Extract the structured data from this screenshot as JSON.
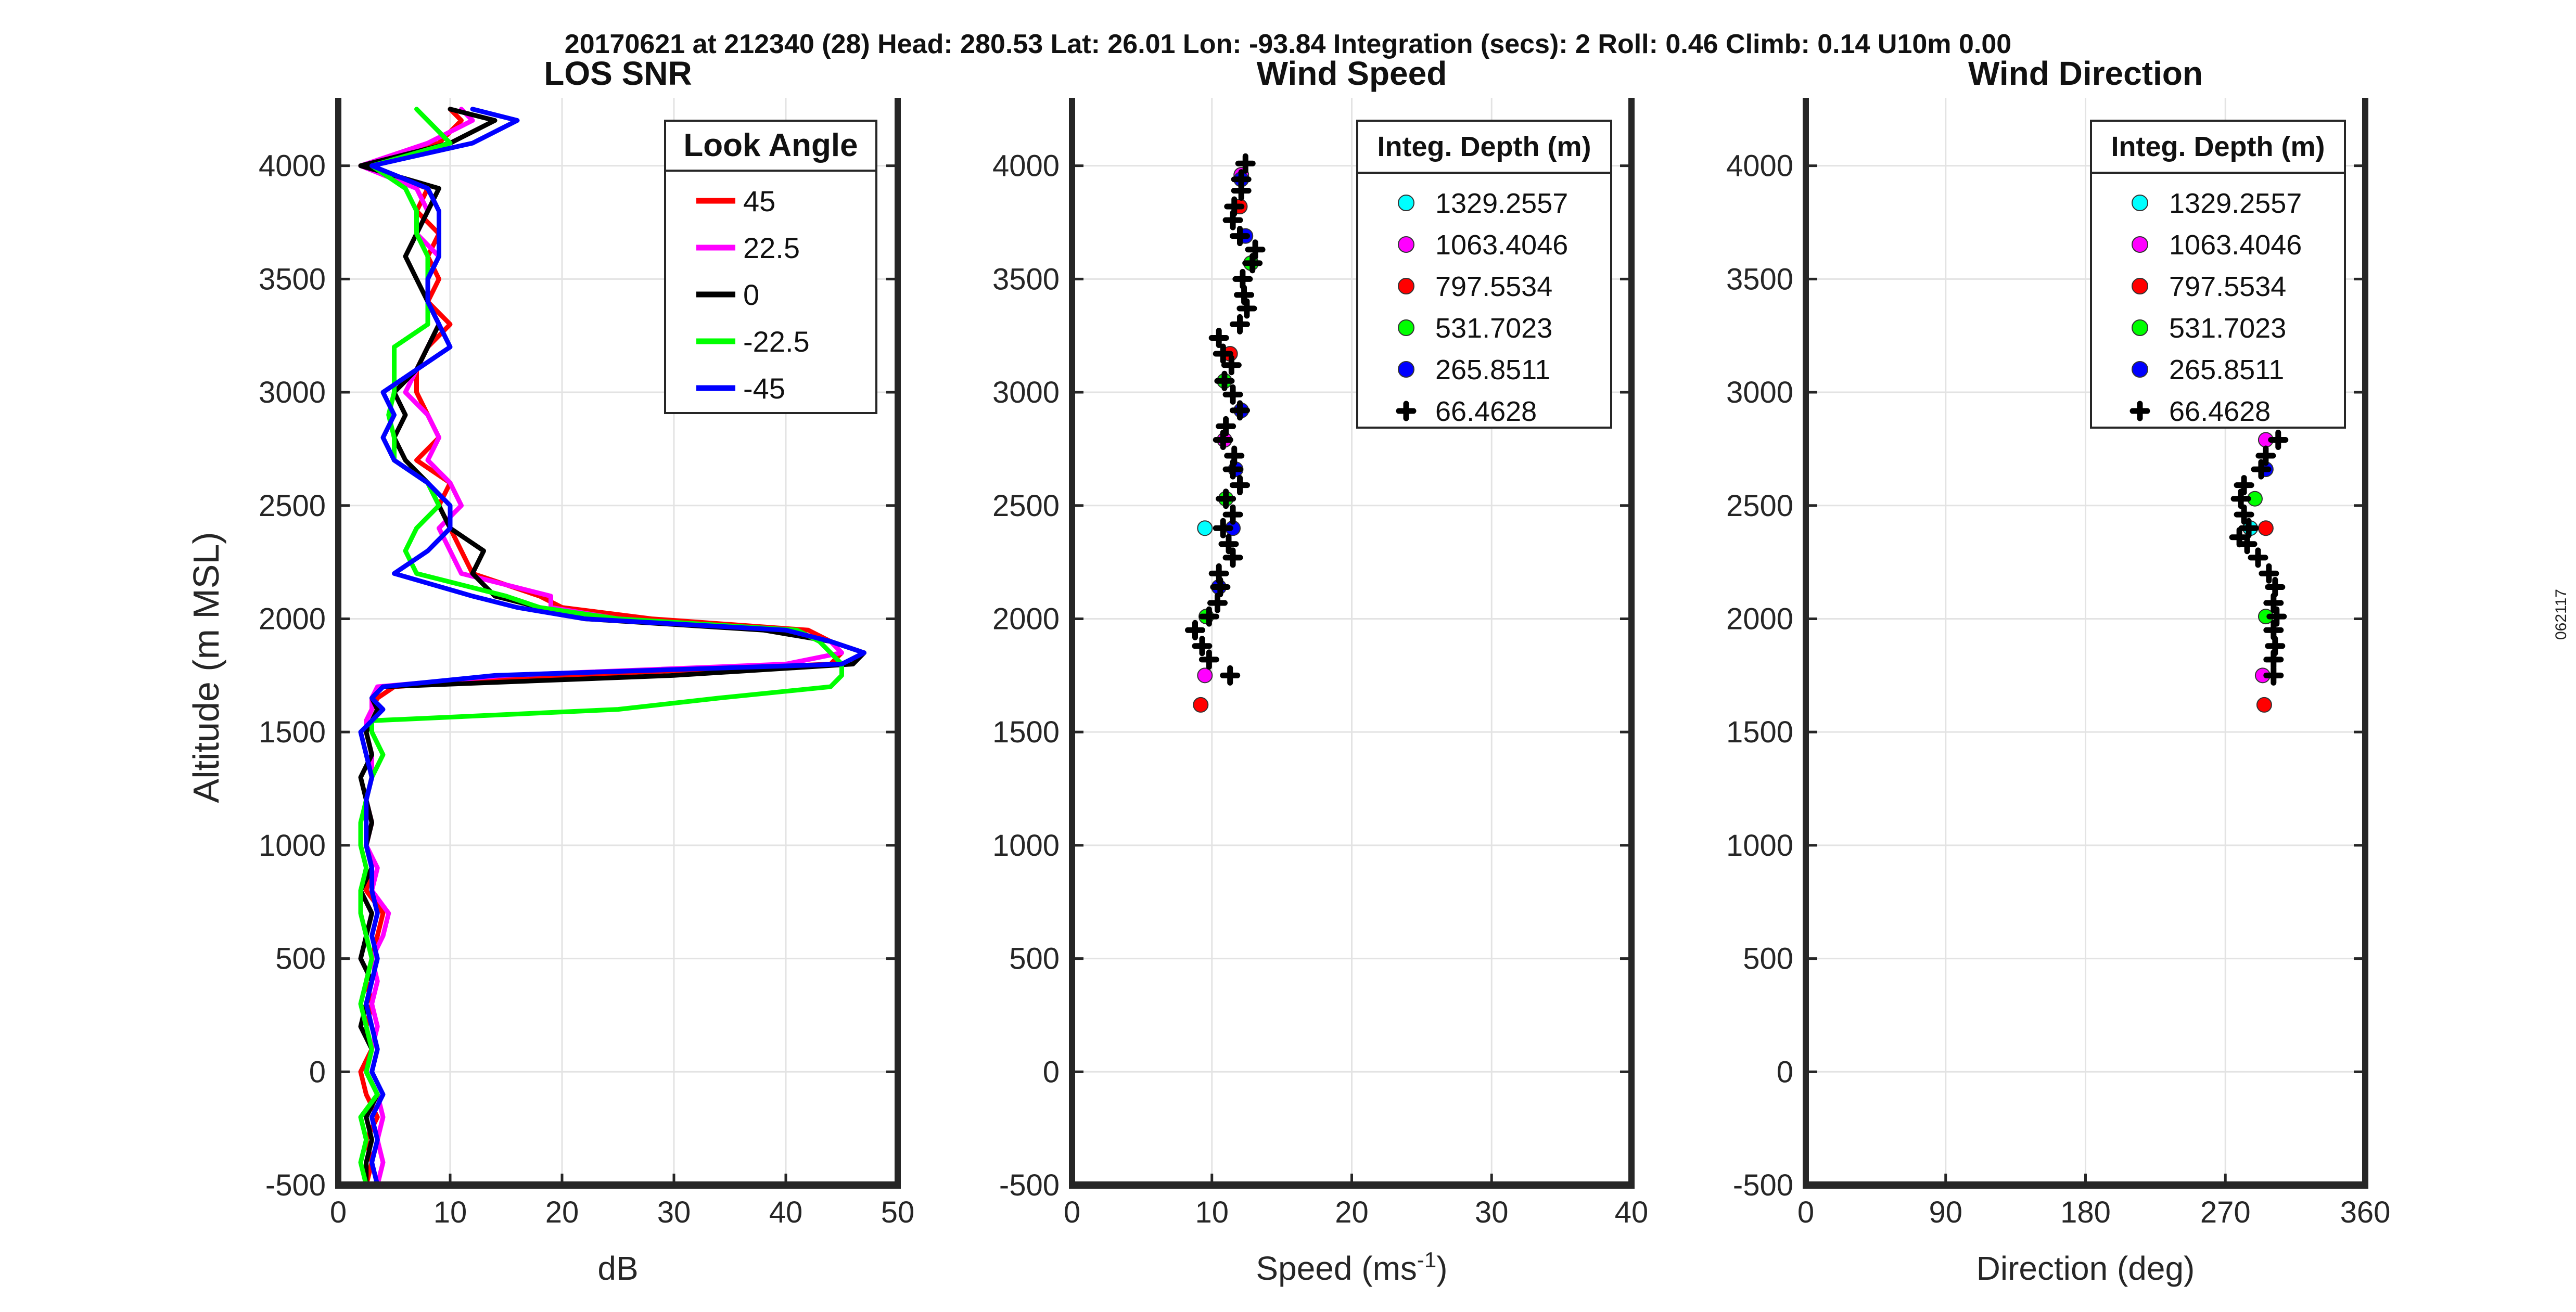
{
  "header": "20170621 at 212340 (28)  Head: 280.53  Lat: 26.01  Lon: -93.84  Integration (secs): 2  Roll: 0.46  Climb: 0.14  U10m 0.00",
  "side_id": "062117",
  "chart_data": [
    {
      "type": "line",
      "title": "LOS SNR",
      "xlabel": "dB",
      "ylabel": "Altitude (m MSL)",
      "xlim": [
        0,
        50
      ],
      "ylim": [
        -500,
        4300
      ],
      "xticks": [
        0,
        10,
        20,
        30,
        40,
        50
      ],
      "yticks": [
        -500,
        0,
        500,
        1000,
        1500,
        2000,
        2500,
        3000,
        3500,
        4000
      ],
      "grid": true,
      "legend_title": "Look Angle",
      "legend_position": "top-right",
      "y": [
        -500,
        -400,
        -300,
        -200,
        -100,
        0,
        100,
        200,
        300,
        400,
        500,
        600,
        700,
        800,
        900,
        1000,
        1100,
        1200,
        1300,
        1400,
        1500,
        1550,
        1600,
        1650,
        1700,
        1750,
        1800,
        1850,
        1900,
        1950,
        2000,
        2050,
        2100,
        2200,
        2300,
        2400,
        2500,
        2600,
        2700,
        2800,
        2900,
        3000,
        3100,
        3200,
        3300,
        3400,
        3500,
        3600,
        3700,
        3800,
        3900,
        4000,
        4100,
        4200,
        4250
      ],
      "series": [
        {
          "name": "45",
          "color": "#ff0000",
          "values": [
            2.5,
            3,
            2.5,
            3.5,
            2.5,
            2,
            3,
            2.5,
            3,
            2.5,
            3,
            3.5,
            4,
            2.5,
            3,
            2.5,
            3,
            2.5,
            3,
            3,
            2.5,
            2.5,
            3,
            3.5,
            5,
            20,
            44,
            45,
            44,
            42,
            28,
            20,
            18,
            12,
            11,
            10,
            9,
            10,
            7,
            9,
            8,
            7,
            7,
            8,
            10,
            8,
            9,
            8,
            9,
            7,
            8,
            2,
            9,
            11,
            10
          ]
        },
        {
          "name": "22.5",
          "color": "#ff00ff",
          "values": [
            3.5,
            4,
            3.5,
            4,
            3.5,
            2.5,
            3,
            3.5,
            3,
            3.5,
            3,
            4,
            4.5,
            3,
            3.5,
            2.5,
            3,
            2.5,
            3,
            3,
            2.5,
            2.5,
            3,
            3,
            3.5,
            15,
            40,
            45,
            44,
            40,
            25,
            19,
            19,
            11,
            10,
            9,
            11,
            10,
            8,
            9,
            8,
            6,
            7,
            8,
            9,
            8,
            8,
            9,
            7,
            8,
            7,
            2,
            8,
            12,
            11
          ]
        },
        {
          "name": "0",
          "color": "#000000",
          "values": [
            2.5,
            2.5,
            3,
            2.5,
            3.5,
            2.5,
            3,
            2,
            2.5,
            3,
            2,
            2.5,
            3,
            2,
            3,
            2.5,
            3,
            2.5,
            2,
            3,
            2.5,
            3,
            3.5,
            3,
            4,
            30,
            46,
            47,
            44,
            38,
            22,
            18,
            14,
            12,
            13,
            10,
            9,
            8,
            6,
            5,
            6,
            5,
            7,
            8,
            9,
            8,
            7,
            6,
            7,
            8,
            9,
            2,
            10,
            14,
            10
          ]
        },
        {
          "name": "-22.5",
          "color": "#00ff00",
          "values": [
            2.5,
            2,
            2.5,
            2,
            3.5,
            2.5,
            3,
            2.5,
            2,
            2.5,
            3,
            2.5,
            2,
            2,
            2.5,
            2,
            2,
            2.5,
            3,
            4,
            3,
            3,
            25,
            34,
            44,
            45,
            45,
            44,
            43,
            41,
            25,
            18,
            15,
            7,
            6,
            7,
            9,
            8,
            5,
            5,
            4.5,
            5,
            5,
            5,
            8,
            8,
            8,
            8,
            7,
            7,
            6,
            3,
            10,
            8,
            7
          ]
        },
        {
          "name": "-45",
          "color": "#0000ff",
          "values": [
            3.5,
            3,
            3.5,
            3,
            4,
            3,
            3.5,
            3,
            2.5,
            3,
            3.5,
            3,
            3.5,
            3,
            3,
            2.5,
            2.5,
            2.5,
            3,
            2.5,
            2,
            3,
            4,
            3,
            4,
            14,
            45,
            47,
            44,
            40,
            22,
            16,
            12,
            5,
            8,
            10,
            10,
            8,
            5,
            4,
            5,
            4,
            7,
            10,
            9,
            8,
            8,
            9,
            9,
            9,
            8,
            3,
            12,
            16,
            12
          ]
        }
      ]
    },
    {
      "type": "scatter",
      "title": "Wind Speed",
      "xlabel": "Speed (ms",
      "xlabel_sup": "-1",
      "xlabel_close": ")",
      "xlim": [
        0,
        40
      ],
      "ylim": [
        -500,
        4300
      ],
      "xticks": [
        0,
        10,
        20,
        30,
        40
      ],
      "yticks": [
        -500,
        0,
        500,
        1000,
        1500,
        2000,
        2500,
        3000,
        3500,
        4000
      ],
      "grid": true,
      "legend_title": "Integ. Depth (m)",
      "legend_position": "top-right",
      "series": [
        {
          "name": "1329.2557",
          "color": "#00ffff",
          "marker": "circle",
          "points": [
            [
              9.5,
              2400
            ]
          ]
        },
        {
          "name": "1063.4046",
          "color": "#ff00ff",
          "marker": "circle",
          "points": [
            [
              9.5,
              1750
            ],
            [
              10.9,
              2790
            ],
            [
              12.1,
              3960
            ]
          ]
        },
        {
          "name": "797.5534",
          "color": "#ff0000",
          "marker": "circle",
          "points": [
            [
              9.2,
              1620
            ],
            [
              11.3,
              3170
            ],
            [
              12.0,
              3820
            ]
          ]
        },
        {
          "name": "531.7023",
          "color": "#00ff00",
          "marker": "circle",
          "points": [
            [
              9.6,
              2010
            ],
            [
              11.0,
              2530
            ],
            [
              10.9,
              3050
            ],
            [
              12.8,
              3570
            ]
          ]
        },
        {
          "name": "265.8511",
          "color": "#0000ff",
          "marker": "circle",
          "points": [
            [
              10.5,
              2140
            ],
            [
              11.5,
              2400
            ],
            [
              11.7,
              2660
            ],
            [
              12.1,
              2920
            ],
            [
              12.4,
              3690
            ],
            [
              12.1,
              3940
            ]
          ]
        },
        {
          "name": "66.4628",
          "color": "#000000",
          "marker": "plus",
          "points": [
            [
              11.3,
              1750
            ],
            [
              9.8,
              1820
            ],
            [
              9.3,
              1880
            ],
            [
              8.8,
              1950
            ],
            [
              9.8,
              2010
            ],
            [
              10.4,
              2070
            ],
            [
              10.6,
              2140
            ],
            [
              10.5,
              2200
            ],
            [
              11.5,
              2270
            ],
            [
              11.2,
              2330
            ],
            [
              10.8,
              2400
            ],
            [
              11.5,
              2460
            ],
            [
              11.0,
              2530
            ],
            [
              12.0,
              2590
            ],
            [
              11.5,
              2660
            ],
            [
              11.6,
              2720
            ],
            [
              10.8,
              2790
            ],
            [
              11.0,
              2850
            ],
            [
              12.0,
              2920
            ],
            [
              11.5,
              2990
            ],
            [
              10.9,
              3050
            ],
            [
              11.4,
              3120
            ],
            [
              10.8,
              3170
            ],
            [
              10.5,
              3240
            ],
            [
              12.0,
              3300
            ],
            [
              12.5,
              3370
            ],
            [
              12.3,
              3430
            ],
            [
              12.2,
              3500
            ],
            [
              12.9,
              3570
            ],
            [
              13.1,
              3630
            ],
            [
              12.0,
              3690
            ],
            [
              11.5,
              3760
            ],
            [
              11.6,
              3820
            ],
            [
              12.1,
              3890
            ],
            [
              12.1,
              3940
            ],
            [
              12.4,
              4010
            ]
          ]
        }
      ]
    },
    {
      "type": "scatter",
      "title": "Wind Direction",
      "xlabel": "Direction (deg)",
      "xlim": [
        0,
        360
      ],
      "ylim": [
        -500,
        4300
      ],
      "xticks": [
        0,
        90,
        180,
        270,
        360
      ],
      "yticks": [
        -500,
        0,
        500,
        1000,
        1500,
        2000,
        2500,
        3000,
        3500,
        4000
      ],
      "grid": true,
      "legend_title": "Integ. Depth (m)",
      "legend_position": "top-right",
      "series": [
        {
          "name": "1329.2557",
          "color": "#00ffff",
          "marker": "circle",
          "points": [
            [
              286,
              2400
            ]
          ]
        },
        {
          "name": "1063.4046",
          "color": "#ff00ff",
          "marker": "circle",
          "points": [
            [
              294,
              1750
            ],
            [
              296,
              2790
            ]
          ]
        },
        {
          "name": "797.5534",
          "color": "#ff0000",
          "marker": "circle",
          "points": [
            [
              295,
              1620
            ],
            [
              296,
              2400
            ]
          ]
        },
        {
          "name": "531.7023",
          "color": "#00ff00",
          "marker": "circle",
          "points": [
            [
              296,
              2010
            ],
            [
              289,
              2530
            ]
          ]
        },
        {
          "name": "265.8511",
          "color": "#0000ff",
          "marker": "circle",
          "points": [
            [
              296,
              2660
            ]
          ]
        },
        {
          "name": "66.4628",
          "color": "#000000",
          "marker": "plus",
          "points": [
            [
              301,
              1750
            ],
            [
              301,
              1820
            ],
            [
              302,
              1880
            ],
            [
              301,
              1950
            ],
            [
              303,
              2010
            ],
            [
              301,
              2070
            ],
            [
              302,
              2140
            ],
            [
              298,
              2200
            ],
            [
              291,
              2270
            ],
            [
              284,
              2330
            ],
            [
              279,
              2360
            ],
            [
              285,
              2400
            ],
            [
              282,
              2460
            ],
            [
              280,
              2530
            ],
            [
              282,
              2590
            ],
            [
              293,
              2660
            ],
            [
              296,
              2720
            ],
            [
              304,
              2790
            ]
          ]
        }
      ]
    }
  ]
}
